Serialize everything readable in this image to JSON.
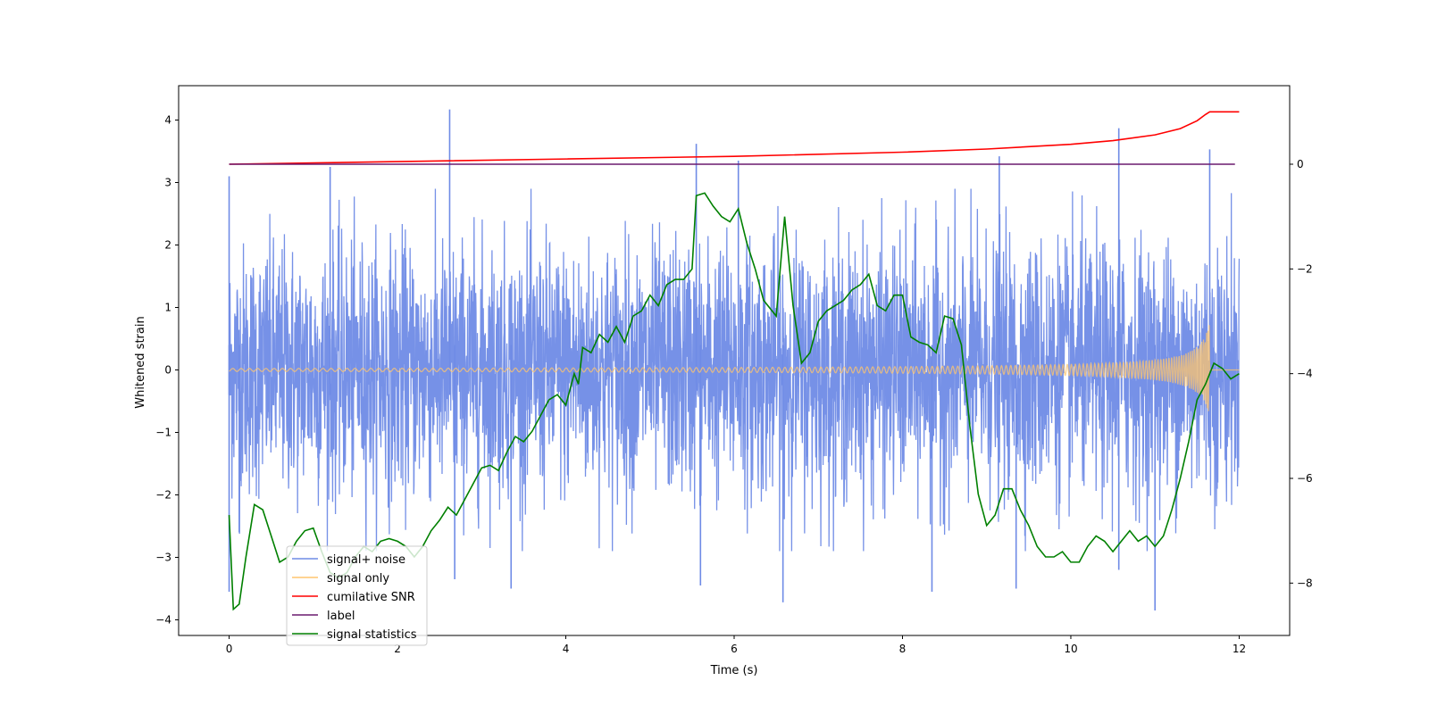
{
  "chart_data": {
    "type": "line",
    "xlabel": "Time (s)",
    "ylabel": "Whitened strain",
    "ylabel_right": "",
    "xlim": [
      -0.6,
      12.6
    ],
    "ylim": [
      -4.25,
      4.55
    ],
    "ylim_right": [
      -9.0,
      1.5
    ],
    "x_ticks": [
      0,
      2,
      4,
      6,
      8,
      10,
      12
    ],
    "x_tick_labels": [
      "0",
      "2",
      "4",
      "6",
      "8",
      "10",
      "12"
    ],
    "y_ticks": [
      4,
      3,
      2,
      1,
      0,
      -1,
      -2,
      -3,
      -4
    ],
    "y_tick_labels": [
      "4",
      "3",
      "2",
      "1",
      "0",
      "−1",
      "−2",
      "−3",
      "−4"
    ],
    "y_right_ticks": [
      0,
      -2,
      -4,
      -6,
      -8
    ],
    "y_right_tick_labels": [
      "0",
      "−2",
      "−4",
      "−6",
      "−8"
    ],
    "legend_position": "lower-left",
    "legend": [
      {
        "label": "signal+ noise",
        "color": "#6f8be6"
      },
      {
        "label": "signal only",
        "color": "#ffc66e"
      },
      {
        "label": "cumilative SNR",
        "color": "#ff0000"
      },
      {
        "label": "label",
        "color": "#6a1a6e"
      },
      {
        "label": "signal statistics",
        "color": "#008000"
      }
    ],
    "series": [
      {
        "name": "signal+ noise",
        "axis": "left",
        "color": "#6f8be6",
        "description": "white noise, std ~1, t = 0 to 12 s",
        "t_range": [
          0,
          12
        ],
        "std": 1.0,
        "prominent_spikes": [
          {
            "t": 0.0,
            "y": 3.1
          },
          {
            "t": 0.0,
            "y": -3.55
          },
          {
            "t": 0.12,
            "y": -2.6
          },
          {
            "t": 1.2,
            "y": 3.25
          },
          {
            "t": 2.62,
            "y": 4.17
          },
          {
            "t": 2.68,
            "y": -3.35
          },
          {
            "t": 3.35,
            "y": -3.5
          },
          {
            "t": 5.55,
            "y": 3.62
          },
          {
            "t": 5.6,
            "y": -3.45
          },
          {
            "t": 6.05,
            "y": 3.35
          },
          {
            "t": 6.58,
            "y": -3.72
          },
          {
            "t": 8.35,
            "y": -3.55
          },
          {
            "t": 9.15,
            "y": 3.42
          },
          {
            "t": 9.35,
            "y": -3.5
          },
          {
            "t": 10.57,
            "y": 3.87
          },
          {
            "t": 10.57,
            "y": -3.2
          },
          {
            "t": 11.0,
            "y": -3.85
          },
          {
            "t": 11.65,
            "y": 3.53
          }
        ]
      },
      {
        "name": "signal only",
        "axis": "left",
        "color": "#ffc66e",
        "description": "chirp, amplitude grows to ~0.78 at merger t = 11.65 s, then 0",
        "t_range": [
          0,
          12
        ],
        "merger_t": 11.65,
        "peak_amplitude": 0.78
      },
      {
        "name": "cumilative SNR",
        "axis": "right",
        "color": "#ff0000",
        "x": [
          0,
          2,
          4,
          6,
          8,
          9,
          10,
          10.5,
          11.0,
          11.3,
          11.5,
          11.6,
          11.65,
          12.0
        ],
        "y": [
          0.0,
          0.05,
          0.1,
          0.15,
          0.23,
          0.29,
          0.38,
          0.45,
          0.56,
          0.68,
          0.83,
          0.95,
          1.0,
          1.0
        ]
      },
      {
        "name": "label",
        "axis": "right",
        "color": "#6a1a6e",
        "x": [
          0,
          11.95
        ],
        "y": [
          0.0,
          0.0
        ]
      },
      {
        "name": "signal statistics",
        "axis": "right",
        "color": "#008000",
        "x": [
          0.0,
          0.05,
          0.12,
          0.2,
          0.3,
          0.4,
          0.5,
          0.6,
          0.7,
          0.8,
          0.9,
          1.0,
          1.1,
          1.2,
          1.3,
          1.4,
          1.5,
          1.6,
          1.7,
          1.8,
          1.9,
          2.0,
          2.1,
          2.2,
          2.3,
          2.4,
          2.5,
          2.6,
          2.7,
          2.8,
          2.9,
          3.0,
          3.1,
          3.2,
          3.3,
          3.4,
          3.5,
          3.6,
          3.7,
          3.8,
          3.9,
          4.0,
          4.1,
          4.15,
          4.2,
          4.3,
          4.4,
          4.5,
          4.6,
          4.7,
          4.8,
          4.9,
          5.0,
          5.1,
          5.2,
          5.3,
          5.4,
          5.5,
          5.55,
          5.65,
          5.75,
          5.85,
          5.95,
          6.05,
          6.15,
          6.25,
          6.35,
          6.5,
          6.6,
          6.7,
          6.8,
          6.9,
          7.0,
          7.1,
          7.2,
          7.3,
          7.4,
          7.5,
          7.6,
          7.7,
          7.8,
          7.9,
          8.0,
          8.1,
          8.2,
          8.3,
          8.4,
          8.5,
          8.6,
          8.7,
          8.8,
          8.9,
          9.0,
          9.1,
          9.2,
          9.3,
          9.4,
          9.5,
          9.6,
          9.7,
          9.8,
          9.9,
          10.0,
          10.1,
          10.2,
          10.3,
          10.4,
          10.5,
          10.6,
          10.7,
          10.8,
          10.9,
          11.0,
          11.1,
          11.2,
          11.3,
          11.4,
          11.5,
          11.6,
          11.65,
          11.7,
          11.8,
          11.9,
          12.0
        ],
        "y": [
          -6.7,
          -8.5,
          -8.4,
          -7.5,
          -6.5,
          -6.6,
          -7.1,
          -7.6,
          -7.5,
          -7.2,
          -7.0,
          -6.95,
          -7.4,
          -7.8,
          -7.9,
          -7.8,
          -7.5,
          -7.3,
          -7.4,
          -7.2,
          -7.15,
          -7.2,
          -7.3,
          -7.5,
          -7.3,
          -7.0,
          -6.8,
          -6.55,
          -6.7,
          -6.4,
          -6.1,
          -5.8,
          -5.75,
          -5.85,
          -5.5,
          -5.2,
          -5.3,
          -5.1,
          -4.8,
          -4.5,
          -4.4,
          -4.6,
          -4.0,
          -4.2,
          -3.5,
          -3.6,
          -3.25,
          -3.4,
          -3.1,
          -3.4,
          -2.9,
          -2.8,
          -2.5,
          -2.7,
          -2.3,
          -2.2,
          -2.2,
          -2.0,
          -0.6,
          -0.55,
          -0.8,
          -1.0,
          -1.1,
          -0.85,
          -1.5,
          -2.0,
          -2.6,
          -2.9,
          -1.0,
          -2.7,
          -3.8,
          -3.6,
          -3.0,
          -2.8,
          -2.7,
          -2.6,
          -2.4,
          -2.3,
          -2.1,
          -2.7,
          -2.8,
          -2.5,
          -2.5,
          -3.3,
          -3.4,
          -3.45,
          -3.6,
          -2.9,
          -2.95,
          -3.45,
          -5.0,
          -6.3,
          -6.9,
          -6.7,
          -6.2,
          -6.2,
          -6.6,
          -6.9,
          -7.3,
          -7.5,
          -7.5,
          -7.4,
          -7.6,
          -7.6,
          -7.3,
          -7.1,
          -7.2,
          -7.4,
          -7.2,
          -7.0,
          -7.2,
          -7.1,
          -7.3,
          -7.1,
          -6.6,
          -6.0,
          -5.3,
          -4.5,
          -4.2,
          -4.0,
          -3.8,
          -3.9,
          -4.1,
          -4.0
        ]
      }
    ]
  }
}
